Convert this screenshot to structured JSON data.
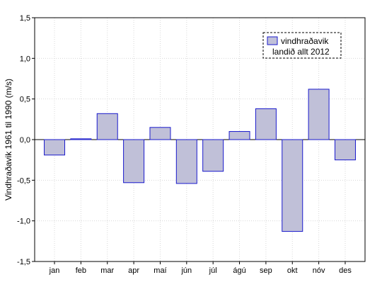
{
  "chart_data": {
    "type": "bar",
    "categories": [
      "jan",
      "feb",
      "mar",
      "apr",
      "maí",
      "jún",
      "júl",
      "ágú",
      "sep",
      "okt",
      "nóv",
      "des"
    ],
    "series": [
      {
        "name_lines": [
          "vindhraðavik",
          "landið allt 2012"
        ],
        "values": [
          -0.19,
          0.01,
          0.32,
          -0.53,
          0.15,
          -0.54,
          -0.39,
          0.1,
          0.38,
          -1.13,
          0.62,
          -0.25
        ]
      }
    ],
    "ylabel": "Vindhraðavik 1961 til 1990 (m/s)",
    "ylim": [
      -1.5,
      1.5
    ],
    "yticks": [
      -1.5,
      -1.0,
      -0.5,
      0.0,
      0.5,
      1.0,
      1.5
    ],
    "ytick_labels": [
      "-1,5",
      "-1,0",
      "-0,5",
      "0,0",
      "0,5",
      "1,0",
      "1,5"
    ],
    "grid": true,
    "legend_position": "top-right",
    "colors": {
      "bar_fill": "#c0c0d8",
      "bar_stroke": "#1a1acc",
      "grid": "#d8d8d8",
      "axis": "#000000"
    }
  }
}
